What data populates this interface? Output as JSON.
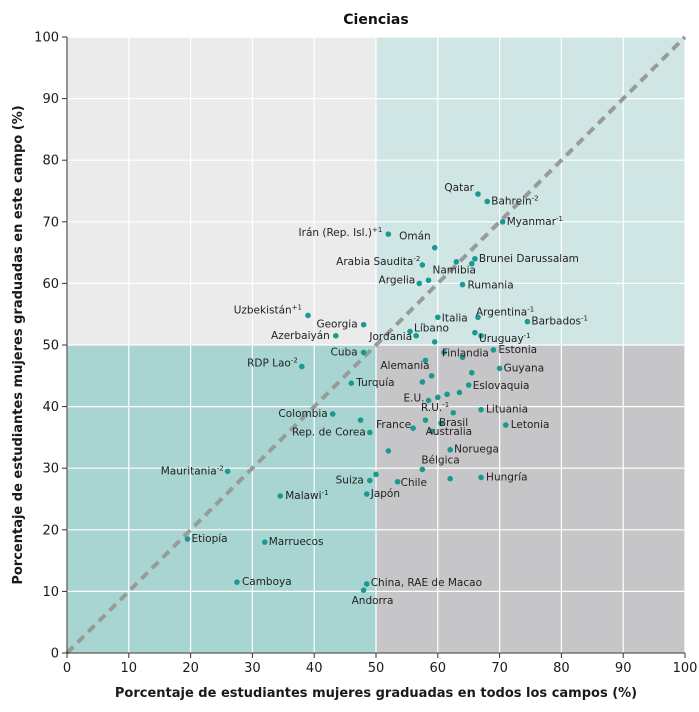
{
  "chart_data": {
    "type": "scatter",
    "title": "Ciencias",
    "xlabel": "Porcentaje de estudiantes mujeres graduadas en todos los campos (%)",
    "ylabel": "Porcentaje de estudiantes mujeres graduadas en este campo (%)",
    "xlim": [
      0,
      100
    ],
    "ylim": [
      0,
      100
    ],
    "xticks": [
      "0",
      "10",
      "20",
      "30",
      "40",
      "50",
      "60",
      "70",
      "80",
      "90",
      "100"
    ],
    "yticks": [
      "0",
      "10",
      "20",
      "30",
      "40",
      "50",
      "60",
      "70",
      "80",
      "90",
      "100"
    ],
    "grid": true,
    "reference_line": "diagonal y=x, dashed",
    "quadrant_split": {
      "x": 50,
      "y": 50
    },
    "colors": {
      "quadrant_top_left": "#ebebeb",
      "quadrant_top_right": "#cfe6e4",
      "quadrant_bottom_left": "#a8d5d2",
      "quadrant_bottom_right": "#c6c6c8",
      "point": "#1a9990",
      "diagonal": "#9a9a9a",
      "grid": "#ffffff"
    },
    "points": [
      {
        "x": 66.5,
        "y": 74.5,
        "label": "Qatar",
        "sup": ""
      },
      {
        "x": 68,
        "y": 73.3,
        "label": "Bahrein",
        "sup": "-2"
      },
      {
        "x": 70.5,
        "y": 70,
        "label": "Myanmar",
        "sup": "-1"
      },
      {
        "x": 52,
        "y": 68,
        "label": "Irán (Rep. Isl.)",
        "sup": "+1"
      },
      {
        "x": 59.5,
        "y": 65.8,
        "label": "Omán",
        "sup": ""
      },
      {
        "x": 57.5,
        "y": 63,
        "label": "Arabia Saudita",
        "sup": "-2"
      },
      {
        "x": 66,
        "y": 64,
        "label": "Brunei Darussalam",
        "sup": ""
      },
      {
        "x": 63,
        "y": 63.5,
        "label": "",
        "sup": ""
      },
      {
        "x": 65.5,
        "y": 63.2,
        "label": "",
        "sup": ""
      },
      {
        "x": 58.5,
        "y": 60.5,
        "label": "Namibia",
        "sup": ""
      },
      {
        "x": 57,
        "y": 60,
        "label": "Argelia",
        "sup": ""
      },
      {
        "x": 64,
        "y": 59.8,
        "label": "Rumania",
        "sup": ""
      },
      {
        "x": 39,
        "y": 54.8,
        "label": "Uzbekistán",
        "sup": "+1"
      },
      {
        "x": 48,
        "y": 53.3,
        "label": "Georgia",
        "sup": ""
      },
      {
        "x": 43.5,
        "y": 51.5,
        "label": "Azerbaiyán",
        "sup": ""
      },
      {
        "x": 60,
        "y": 54.5,
        "label": "Italia",
        "sup": ""
      },
      {
        "x": 66.5,
        "y": 54.5,
        "label": "Argentina",
        "sup": "-1"
      },
      {
        "x": 74.5,
        "y": 53.8,
        "label": "Barbados",
        "sup": "-1"
      },
      {
        "x": 55.5,
        "y": 52.2,
        "label": "Líbano",
        "sup": ""
      },
      {
        "x": 56.5,
        "y": 51.5,
        "label": "Jordania",
        "sup": ""
      },
      {
        "x": 66,
        "y": 52,
        "label": "",
        "sup": ""
      },
      {
        "x": 67,
        "y": 51.5,
        "label": "Uruguay",
        "sup": "-1"
      },
      {
        "x": 59.5,
        "y": 50.5,
        "label": "",
        "sup": ""
      },
      {
        "x": 48,
        "y": 48.8,
        "label": "Cuba",
        "sup": ""
      },
      {
        "x": 61,
        "y": 48.8,
        "label": "Finlandia",
        "sup": ""
      },
      {
        "x": 69,
        "y": 49.2,
        "label": "Estonia",
        "sup": ""
      },
      {
        "x": 38,
        "y": 46.5,
        "label": "RDP Lao",
        "sup": "-2"
      },
      {
        "x": 58,
        "y": 47.5,
        "label": "",
        "sup": ""
      },
      {
        "x": 64,
        "y": 48,
        "label": "",
        "sup": ""
      },
      {
        "x": 70,
        "y": 46.2,
        "label": "Guyana",
        "sup": ""
      },
      {
        "x": 65.5,
        "y": 45.5,
        "label": "",
        "sup": ""
      },
      {
        "x": 59,
        "y": 45,
        "label": "Alemania",
        "sup": ""
      },
      {
        "x": 46,
        "y": 43.8,
        "label": "Turquía",
        "sup": ""
      },
      {
        "x": 57.5,
        "y": 44,
        "label": "",
        "sup": ""
      },
      {
        "x": 65,
        "y": 43.5,
        "label": "Eslovaquia",
        "sup": ""
      },
      {
        "x": 61.5,
        "y": 42,
        "label": "",
        "sup": ""
      },
      {
        "x": 63.5,
        "y": 42.3,
        "label": "",
        "sup": ""
      },
      {
        "x": 58.5,
        "y": 41,
        "label": "E.U.",
        "sup": ""
      },
      {
        "x": 60,
        "y": 41.5,
        "label": "",
        "sup": ""
      },
      {
        "x": 67,
        "y": 39.5,
        "label": "Lituania",
        "sup": ""
      },
      {
        "x": 43,
        "y": 38.8,
        "label": "Colombia",
        "sup": ""
      },
      {
        "x": 62.5,
        "y": 39,
        "label": "R.U.",
        "sup": "-1"
      },
      {
        "x": 47.5,
        "y": 37.8,
        "label": "",
        "sup": ""
      },
      {
        "x": 58,
        "y": 37.8,
        "label": "",
        "sup": ""
      },
      {
        "x": 60.5,
        "y": 37.3,
        "label": "Brasil",
        "sup": ""
      },
      {
        "x": 71,
        "y": 37,
        "label": "Letonia",
        "sup": ""
      },
      {
        "x": 56,
        "y": 36.5,
        "label": "France",
        "sup": ""
      },
      {
        "x": 59,
        "y": 36,
        "label": "Australia",
        "sup": ""
      },
      {
        "x": 49,
        "y": 35.8,
        "label": "Rep. de Corea",
        "sup": ""
      },
      {
        "x": 62,
        "y": 33,
        "label": "Noruega",
        "sup": ""
      },
      {
        "x": 52,
        "y": 32.8,
        "label": "",
        "sup": ""
      },
      {
        "x": 57.5,
        "y": 29.8,
        "label": "Bélgica",
        "sup": ""
      },
      {
        "x": 26,
        "y": 29.5,
        "label": "Mauritania",
        "sup": "-2"
      },
      {
        "x": 50,
        "y": 29,
        "label": "",
        "sup": ""
      },
      {
        "x": 49,
        "y": 28,
        "label": "Suiza",
        "sup": ""
      },
      {
        "x": 53.5,
        "y": 27.8,
        "label": "Chile",
        "sup": ""
      },
      {
        "x": 62,
        "y": 28.3,
        "label": "",
        "sup": ""
      },
      {
        "x": 67,
        "y": 28.5,
        "label": "Hungría",
        "sup": ""
      },
      {
        "x": 34.5,
        "y": 25.5,
        "label": "Malawi",
        "sup": "-1"
      },
      {
        "x": 48.5,
        "y": 25.8,
        "label": "Japón",
        "sup": ""
      },
      {
        "x": 19.5,
        "y": 18.5,
        "label": "Etiopía",
        "sup": ""
      },
      {
        "x": 32,
        "y": 18,
        "label": "Marruecos",
        "sup": ""
      },
      {
        "x": 27.5,
        "y": 11.5,
        "label": "Camboya",
        "sup": ""
      },
      {
        "x": 48.5,
        "y": 11.2,
        "label": "China, RAE de Macao",
        "sup": ""
      },
      {
        "x": 48,
        "y": 10.2,
        "label": "Andorra",
        "sup": ""
      }
    ]
  }
}
